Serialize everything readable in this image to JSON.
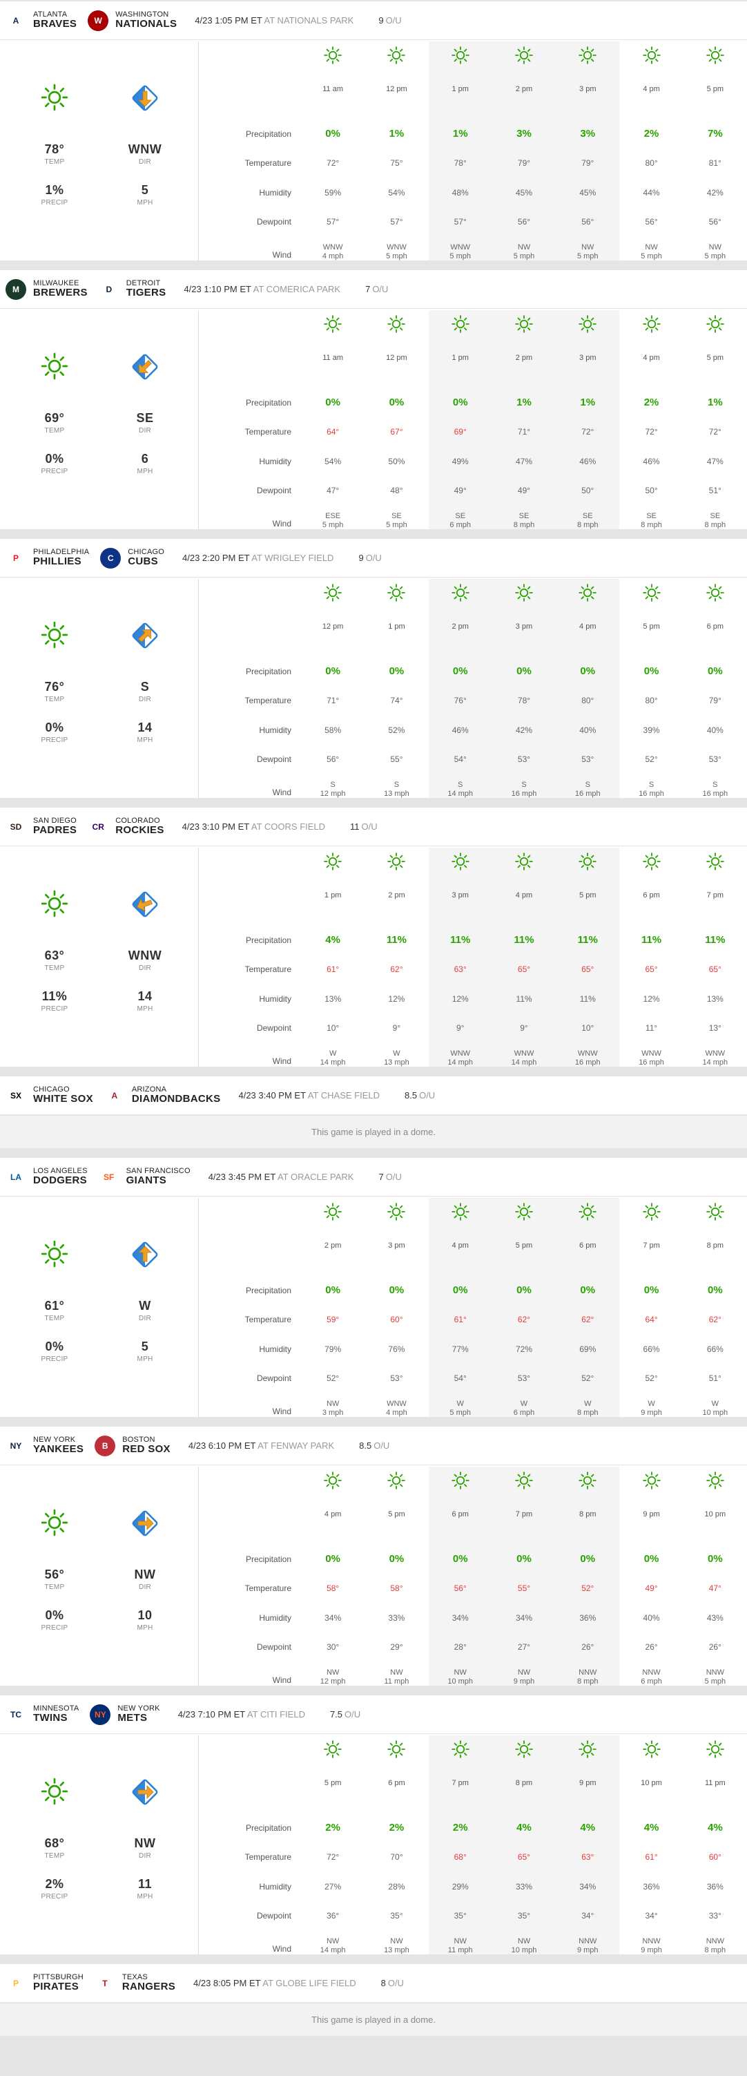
{
  "labels": {
    "precipitation": "Precipitation",
    "temperature": "Temperature",
    "humidity": "Humidity",
    "dewpoint": "Dewpoint",
    "wind": "Wind",
    "temp": "TEMP",
    "dir": "DIR",
    "precip": "PRECIP",
    "mph": "MPH",
    "ou": "O/U"
  },
  "colors": {
    "good": "#2aa300",
    "hot": "#e23e3e",
    "sun": "#2aa300",
    "arrow": "#f0a020",
    "wind_bg": "#2a7fd4"
  },
  "games": [
    {
      "away": {
        "city": "Atlanta",
        "name": "Braves",
        "logo": "A",
        "logo_color": "#13274f",
        "logo_bg": "#fff"
      },
      "home": {
        "city": "Washington",
        "name": "Nationals",
        "logo": "W",
        "logo_color": "#fff",
        "logo_bg": "#ab0003"
      },
      "time": "4/23 1:05 PM ET",
      "park": "AT NATIONALS PARK",
      "ou": "9",
      "summary": {
        "temp": "78°",
        "precip": "1%",
        "dir": "WNW",
        "mph": "5",
        "arrow_deg": 90
      },
      "hours": [
        "11 am",
        "12 pm",
        "1 pm",
        "2 pm",
        "3 pm",
        "4 pm",
        "5 pm"
      ],
      "precip": [
        "0%",
        "1%",
        "1%",
        "3%",
        "3%",
        "2%",
        "7%"
      ],
      "temp": [
        "72°",
        "75°",
        "78°",
        "79°",
        "79°",
        "80°",
        "81°"
      ],
      "hot": [
        0,
        0,
        0,
        0,
        0,
        0,
        0
      ],
      "humidity": [
        "59%",
        "54%",
        "48%",
        "45%",
        "45%",
        "44%",
        "42%"
      ],
      "dewpoint": [
        "57°",
        "57°",
        "57°",
        "56°",
        "56°",
        "56°",
        "56°"
      ],
      "wind": [
        [
          "WNW",
          "4 mph"
        ],
        [
          "WNW",
          "5 mph"
        ],
        [
          "WNW",
          "5 mph"
        ],
        [
          "NW",
          "5 mph"
        ],
        [
          "NW",
          "5 mph"
        ],
        [
          "NW",
          "5 mph"
        ],
        [
          "NW",
          "5 mph"
        ]
      ],
      "shade": [
        0,
        0,
        1,
        1,
        1,
        0,
        0
      ]
    },
    {
      "away": {
        "city": "Milwaukee",
        "name": "Brewers",
        "logo": "M",
        "logo_color": "#fff",
        "logo_bg": "#1a3a2a"
      },
      "home": {
        "city": "Detroit",
        "name": "Tigers",
        "logo": "D",
        "logo_color": "#0c2340",
        "logo_bg": "#fff"
      },
      "time": "4/23 1:10 PM ET",
      "park": "AT COMERICA PARK",
      "ou": "7",
      "summary": {
        "temp": "69°",
        "precip": "0%",
        "dir": "SE",
        "mph": "6",
        "arrow_deg": 135
      },
      "hours": [
        "11 am",
        "12 pm",
        "1 pm",
        "2 pm",
        "3 pm",
        "4 pm",
        "5 pm"
      ],
      "precip": [
        "0%",
        "0%",
        "0%",
        "1%",
        "1%",
        "2%",
        "1%"
      ],
      "temp": [
        "64°",
        "67°",
        "69°",
        "71°",
        "72°",
        "72°",
        "72°"
      ],
      "hot": [
        1,
        1,
        1,
        0,
        0,
        0,
        0
      ],
      "humidity": [
        "54%",
        "50%",
        "49%",
        "47%",
        "46%",
        "46%",
        "47%"
      ],
      "dewpoint": [
        "47°",
        "48°",
        "49°",
        "49°",
        "50°",
        "50°",
        "51°"
      ],
      "wind": [
        [
          "ESE",
          "5 mph"
        ],
        [
          "SE",
          "5 mph"
        ],
        [
          "SE",
          "6 mph"
        ],
        [
          "SE",
          "8 mph"
        ],
        [
          "SE",
          "8 mph"
        ],
        [
          "SE",
          "8 mph"
        ],
        [
          "SE",
          "8 mph"
        ]
      ],
      "shade": [
        0,
        0,
        1,
        1,
        1,
        0,
        0
      ]
    },
    {
      "away": {
        "city": "Philadelphia",
        "name": "Phillies",
        "logo": "P",
        "logo_color": "#e81828",
        "logo_bg": "#fff"
      },
      "home": {
        "city": "Chicago",
        "name": "Cubs",
        "logo": "C",
        "logo_color": "#fff",
        "logo_bg": "#0e3386"
      },
      "time": "4/23 2:20 PM ET",
      "park": "AT WRIGLEY FIELD",
      "ou": "9",
      "summary": {
        "temp": "76°",
        "precip": "0%",
        "dir": "S",
        "mph": "14",
        "arrow_deg": -45
      },
      "hours": [
        "12 pm",
        "1 pm",
        "2 pm",
        "3 pm",
        "4 pm",
        "5 pm",
        "6 pm"
      ],
      "precip": [
        "0%",
        "0%",
        "0%",
        "0%",
        "0%",
        "0%",
        "0%"
      ],
      "temp": [
        "71°",
        "74°",
        "76°",
        "78°",
        "80°",
        "80°",
        "79°"
      ],
      "hot": [
        0,
        0,
        0,
        0,
        0,
        0,
        0
      ],
      "humidity": [
        "58%",
        "52%",
        "46%",
        "42%",
        "40%",
        "39%",
        "40%"
      ],
      "dewpoint": [
        "56°",
        "55°",
        "54°",
        "53°",
        "53°",
        "52°",
        "53°"
      ],
      "wind": [
        [
          "S",
          "12 mph"
        ],
        [
          "S",
          "13 mph"
        ],
        [
          "S",
          "14 mph"
        ],
        [
          "S",
          "16 mph"
        ],
        [
          "S",
          "16 mph"
        ],
        [
          "S",
          "16 mph"
        ],
        [
          "S",
          "16 mph"
        ]
      ],
      "shade": [
        0,
        0,
        1,
        1,
        1,
        0,
        0
      ]
    },
    {
      "away": {
        "city": "San Diego",
        "name": "Padres",
        "logo": "SD",
        "logo_color": "#2f241d",
        "logo_bg": "#fff"
      },
      "home": {
        "city": "Colorado",
        "name": "Rockies",
        "logo": "CR",
        "logo_color": "#33006f",
        "logo_bg": "#fff"
      },
      "time": "4/23 3:10 PM ET",
      "park": "AT COORS FIELD",
      "ou": "11",
      "summary": {
        "temp": "63°",
        "precip": "11%",
        "dir": "WNW",
        "mph": "14",
        "arrow_deg": 160
      },
      "hours": [
        "1 pm",
        "2 pm",
        "3 pm",
        "4 pm",
        "5 pm",
        "6 pm",
        "7 pm"
      ],
      "precip": [
        "4%",
        "11%",
        "11%",
        "11%",
        "11%",
        "11%",
        "11%"
      ],
      "temp": [
        "61°",
        "62°",
        "63°",
        "65°",
        "65°",
        "65°",
        "65°"
      ],
      "hot": [
        1,
        1,
        1,
        1,
        1,
        1,
        1
      ],
      "humidity": [
        "13%",
        "12%",
        "12%",
        "11%",
        "11%",
        "12%",
        "13%"
      ],
      "dewpoint": [
        "10°",
        "9°",
        "9°",
        "9°",
        "10°",
        "11°",
        "13°"
      ],
      "wind": [
        [
          "W",
          "14 mph"
        ],
        [
          "W",
          "13 mph"
        ],
        [
          "WNW",
          "14 mph"
        ],
        [
          "WNW",
          "14 mph"
        ],
        [
          "WNW",
          "16 mph"
        ],
        [
          "WNW",
          "16 mph"
        ],
        [
          "WNW",
          "14 mph"
        ]
      ],
      "shade": [
        0,
        0,
        1,
        1,
        1,
        0,
        0
      ]
    },
    {
      "away": {
        "city": "Chicago",
        "name": "White Sox",
        "logo": "SX",
        "logo_color": "#000",
        "logo_bg": "#fff"
      },
      "home": {
        "city": "Arizona",
        "name": "Diamondbacks",
        "logo": "A",
        "logo_color": "#a71930",
        "logo_bg": "#fff"
      },
      "time": "4/23 3:40 PM ET",
      "park": "AT CHASE FIELD",
      "ou": "8.5",
      "dome": "This game is played in a dome."
    },
    {
      "away": {
        "city": "Los Angeles",
        "name": "Dodgers",
        "logo": "LA",
        "logo_color": "#005a9c",
        "logo_bg": "#fff"
      },
      "home": {
        "city": "San Francisco",
        "name": "Giants",
        "logo": "SF",
        "logo_color": "#fd5a1e",
        "logo_bg": "#fff"
      },
      "time": "4/23 3:45 PM ET",
      "park": "AT ORACLE PARK",
      "ou": "7",
      "summary": {
        "temp": "61°",
        "precip": "0%",
        "dir": "W",
        "mph": "5",
        "arrow_deg": -90
      },
      "hours": [
        "2 pm",
        "3 pm",
        "4 pm",
        "5 pm",
        "6 pm",
        "7 pm",
        "8 pm"
      ],
      "precip": [
        "0%",
        "0%",
        "0%",
        "0%",
        "0%",
        "0%",
        "0%"
      ],
      "temp": [
        "59°",
        "60°",
        "61°",
        "62°",
        "62°",
        "64°",
        "62°"
      ],
      "hot": [
        1,
        1,
        1,
        1,
        1,
        1,
        1
      ],
      "humidity": [
        "79%",
        "76%",
        "77%",
        "72%",
        "69%",
        "66%",
        "66%"
      ],
      "dewpoint": [
        "52°",
        "53°",
        "54°",
        "53°",
        "52°",
        "52°",
        "51°"
      ],
      "wind": [
        [
          "NW",
          "3 mph"
        ],
        [
          "WNW",
          "4 mph"
        ],
        [
          "W",
          "5 mph"
        ],
        [
          "W",
          "6 mph"
        ],
        [
          "W",
          "8 mph"
        ],
        [
          "W",
          "9 mph"
        ],
        [
          "W",
          "10 mph"
        ]
      ],
      "shade": [
        0,
        0,
        1,
        1,
        1,
        0,
        0
      ]
    },
    {
      "away": {
        "city": "New York",
        "name": "Yankees",
        "logo": "NY",
        "logo_color": "#0c2340",
        "logo_bg": "#fff"
      },
      "home": {
        "city": "Boston",
        "name": "Red Sox",
        "logo": "B",
        "logo_color": "#fff",
        "logo_bg": "#bd3039"
      },
      "time": "4/23 6:10 PM ET",
      "park": "AT FENWAY PARK",
      "ou": "8.5",
      "summary": {
        "temp": "56°",
        "precip": "0%",
        "dir": "NW",
        "mph": "10",
        "arrow_deg": 0
      },
      "hours": [
        "4 pm",
        "5 pm",
        "6 pm",
        "7 pm",
        "8 pm",
        "9 pm",
        "10 pm"
      ],
      "precip": [
        "0%",
        "0%",
        "0%",
        "0%",
        "0%",
        "0%",
        "0%"
      ],
      "temp": [
        "58°",
        "58°",
        "56°",
        "55°",
        "52°",
        "49°",
        "47°"
      ],
      "hot": [
        1,
        1,
        1,
        1,
        1,
        1,
        1
      ],
      "humidity": [
        "34%",
        "33%",
        "34%",
        "34%",
        "36%",
        "40%",
        "43%"
      ],
      "dewpoint": [
        "30°",
        "29°",
        "28°",
        "27°",
        "26°",
        "26°",
        "26°"
      ],
      "wind": [
        [
          "NW",
          "12 mph"
        ],
        [
          "NW",
          "11 mph"
        ],
        [
          "NW",
          "10 mph"
        ],
        [
          "NW",
          "9 mph"
        ],
        [
          "NNW",
          "8 mph"
        ],
        [
          "NNW",
          "6 mph"
        ],
        [
          "NNW",
          "5 mph"
        ]
      ],
      "shade": [
        0,
        0,
        1,
        1,
        1,
        0,
        0
      ]
    },
    {
      "away": {
        "city": "Minnesota",
        "name": "Twins",
        "logo": "TC",
        "logo_color": "#002b5c",
        "logo_bg": "#fff"
      },
      "home": {
        "city": "New York",
        "name": "Mets",
        "logo": "NY",
        "logo_color": "#ff5910",
        "logo_bg": "#002d72"
      },
      "time": "4/23 7:10 PM ET",
      "park": "AT CITI FIELD",
      "ou": "7.5",
      "summary": {
        "temp": "68°",
        "precip": "2%",
        "dir": "NW",
        "mph": "11",
        "arrow_deg": 0
      },
      "hours": [
        "5 pm",
        "6 pm",
        "7 pm",
        "8 pm",
        "9 pm",
        "10 pm",
        "11 pm"
      ],
      "precip": [
        "2%",
        "2%",
        "2%",
        "4%",
        "4%",
        "4%",
        "4%"
      ],
      "temp": [
        "72°",
        "70°",
        "68°",
        "65°",
        "63°",
        "61°",
        "60°"
      ],
      "hot": [
        0,
        0,
        1,
        1,
        1,
        1,
        1
      ],
      "humidity": [
        "27%",
        "28%",
        "29%",
        "33%",
        "34%",
        "36%",
        "36%"
      ],
      "dewpoint": [
        "36°",
        "35°",
        "35°",
        "35°",
        "34°",
        "34°",
        "33°"
      ],
      "wind": [
        [
          "NW",
          "14 mph"
        ],
        [
          "NW",
          "13 mph"
        ],
        [
          "NW",
          "11 mph"
        ],
        [
          "NW",
          "10 mph"
        ],
        [
          "NNW",
          "9 mph"
        ],
        [
          "NNW",
          "9 mph"
        ],
        [
          "NNW",
          "8 mph"
        ]
      ],
      "shade": [
        0,
        0,
        1,
        1,
        1,
        0,
        0
      ]
    },
    {
      "away": {
        "city": "Pittsburgh",
        "name": "Pirates",
        "logo": "P",
        "logo_color": "#fdb827",
        "logo_bg": "#fff"
      },
      "home": {
        "city": "Texas",
        "name": "Rangers",
        "logo": "T",
        "logo_color": "#c0111f",
        "logo_bg": "#fff"
      },
      "time": "4/23 8:05 PM ET",
      "park": "AT GLOBE LIFE FIELD",
      "ou": "8",
      "dome": "This game is played in a dome."
    }
  ]
}
